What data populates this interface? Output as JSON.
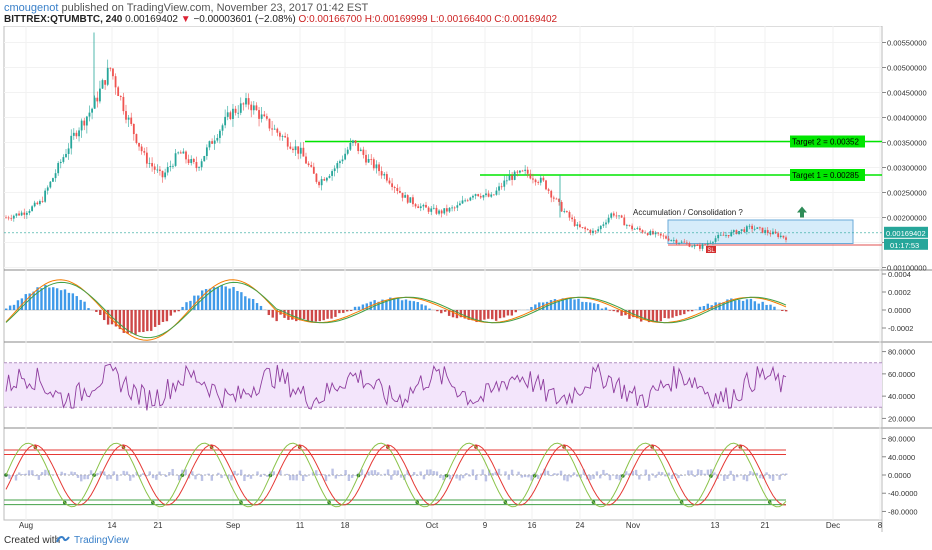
{
  "header": {
    "author": "cmougenot",
    "published": "published on TradingView.com, November 23, 2017 01:42 EST",
    "symbol": "BITTREX:QTUMBTC, 240",
    "last": "0.00169402",
    "change": "−0.00003601 (−2.08%)",
    "ohlc_open": "O:0.00166700",
    "ohlc_high": "H:0.00169999",
    "ohlc_low": "L:0.00166400",
    "ohlc_close": "C:0.00169402"
  },
  "footer": {
    "created": "Created with",
    "brand": "TradingView"
  },
  "colors": {
    "up": "#26a69a",
    "down": "#ef5350",
    "target": "#00e600",
    "support": "#e05050",
    "rsi": "#8e3d9e",
    "rsi_band": "#f3e5fb",
    "box": "#d6ecfa",
    "box_border": "#6aaad8"
  },
  "chart_data": {
    "type": "candlestick",
    "title": "",
    "x_ticks": [
      "Aug",
      "14",
      "21",
      "Sep",
      "11",
      "18",
      "Oct",
      "9",
      "16",
      "24",
      "Nov",
      "13",
      "21",
      "Dec",
      "8"
    ],
    "y_ticks": [
      "0.00550000",
      "0.00500000",
      "0.00450000",
      "0.00400000",
      "0.00350000",
      "0.00300000",
      "0.00250000",
      "0.00200000",
      "0.00150000",
      "0.00100000"
    ],
    "ylim": [
      0.00095,
      0.00575
    ],
    "price_path": [
      0.002,
      0.0021,
      0.0023,
      0.003,
      0.0037,
      0.0042,
      0.005,
      0.004,
      0.0032,
      0.0028,
      0.0033,
      0.003,
      0.0036,
      0.0041,
      0.0043,
      0.0039,
      0.0036,
      0.0033,
      0.0027,
      0.003,
      0.0035,
      0.0031,
      0.0028,
      0.0024,
      0.0022,
      0.0021,
      0.0022,
      0.0025,
      0.0024,
      0.0028,
      0.0029,
      0.0027,
      0.0022,
      0.0018,
      0.0017,
      0.0021,
      0.0018,
      0.0017,
      0.0016,
      0.0015,
      0.0014,
      0.0016,
      0.0017,
      0.0018,
      0.0017,
      0.0016
    ],
    "last_price_label": "0.00169402",
    "countdown_label": "01:17:53",
    "targets": [
      {
        "label": "Target 2 = 0.00352",
        "value": 0.00352
      },
      {
        "label": "Target 1 = 0.00285",
        "value": 0.00285
      }
    ],
    "support": 0.00145,
    "stop_marker": "SL",
    "annotation": "Accumulation / Consolidation ?",
    "macd_ticks": [
      "0.0004",
      "0.0002",
      "0.0000",
      "-0.0002"
    ],
    "rsi_ticks": [
      "80.0000",
      "60.0000",
      "40.0000",
      "20.0000"
    ],
    "stoch_ticks": [
      "80.0000",
      "40.0000",
      "0.0000",
      "-40.0000",
      "-80.0000"
    ]
  }
}
